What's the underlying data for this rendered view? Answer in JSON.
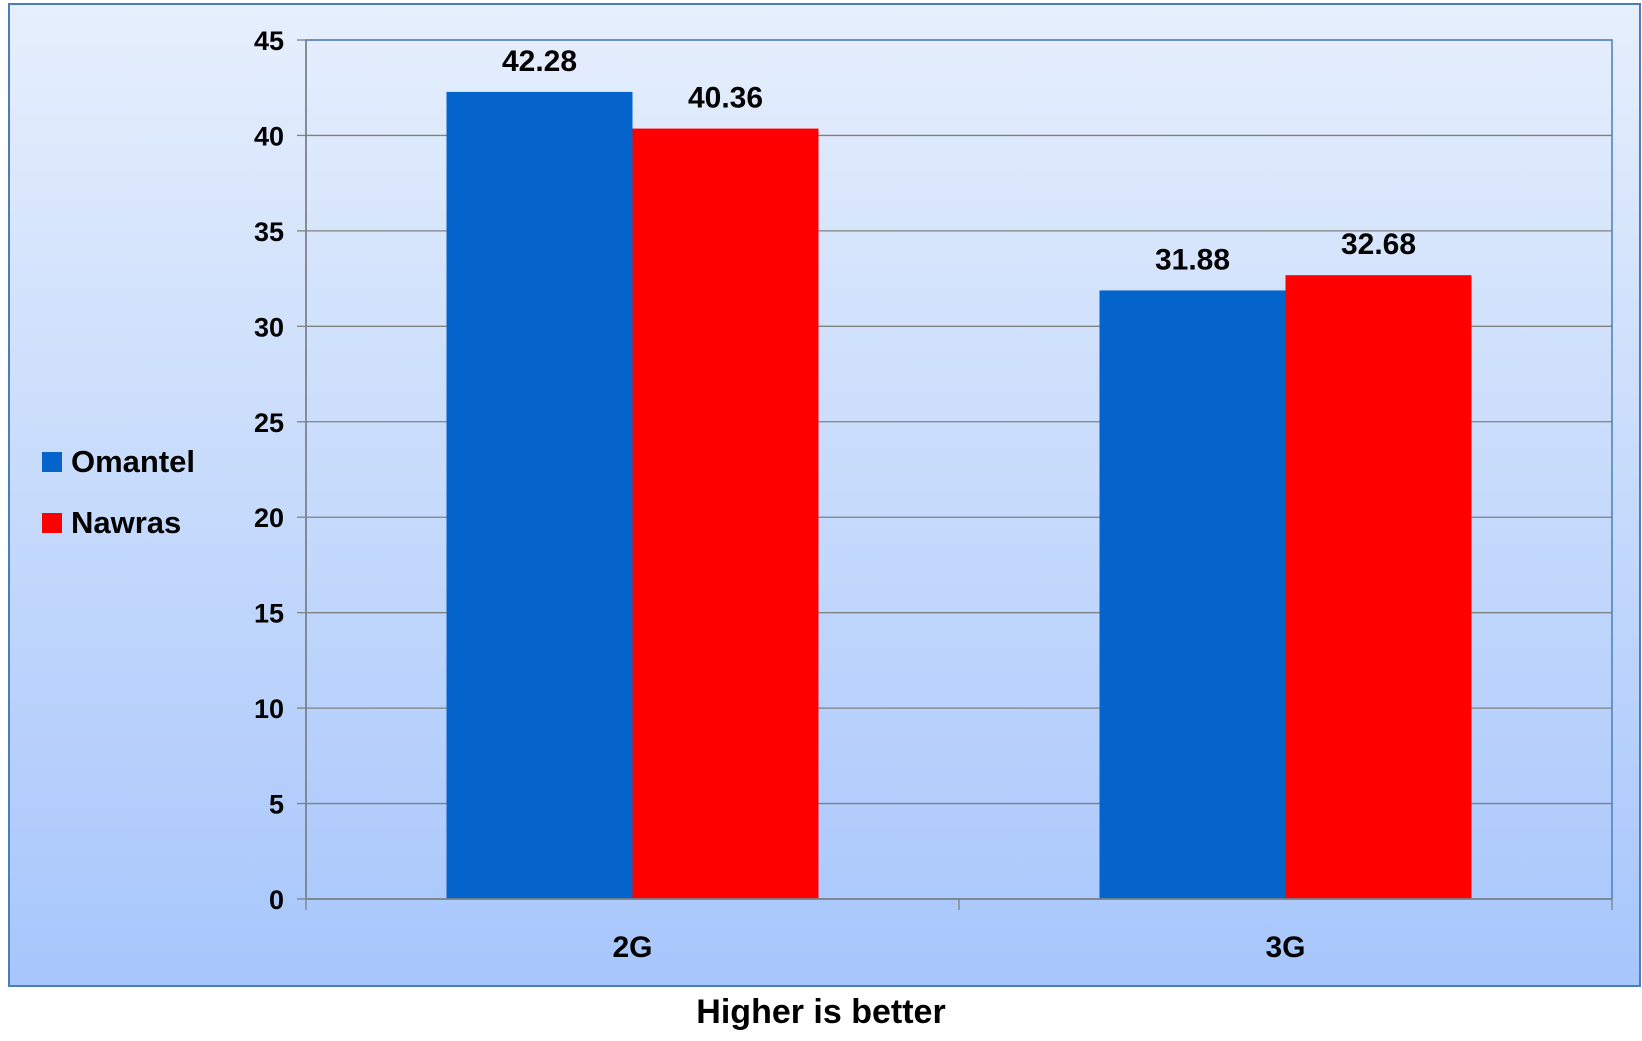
{
  "chart_data": {
    "type": "bar",
    "categories": [
      "2G",
      "3G"
    ],
    "series": [
      {
        "name": "Omantel",
        "values": [
          42.28,
          31.88
        ],
        "color": "#0563CC",
        "labels": [
          "42.28",
          "31.88"
        ]
      },
      {
        "name": "Nawras",
        "values": [
          40.36,
          32.68
        ],
        "color": "#FF0000",
        "labels": [
          "40.36",
          "32.68"
        ]
      }
    ],
    "ylim": [
      0,
      45
    ],
    "yticks": [
      "0",
      "5",
      "10",
      "15",
      "20",
      "25",
      "30",
      "35",
      "40",
      "45"
    ],
    "grid": true,
    "legend_position": "left",
    "xlabel": "Higher is better",
    "ylabel": "",
    "title": ""
  },
  "colors": {
    "background_top": "#E6EFFC",
    "background_bottom": "#A7C6FC",
    "border": "#4A7EBB",
    "gridline": "#808080"
  }
}
